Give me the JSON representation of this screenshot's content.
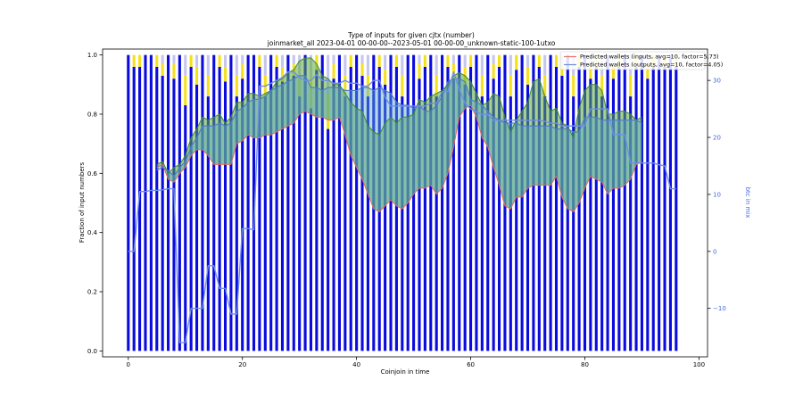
{
  "chart_data": {
    "type": "bar",
    "title_line1": "Type of inputs for given cjtx (number)",
    "title_line2": "joinmarket_all 2023-04-01 00-00-00--2023-05-01 00-00-00_unknown-static-100-1utxo",
    "xlabel": "Coinjoin in time",
    "ylabel": "Fraction of input numbers",
    "ylabel_right": "btc in mix",
    "xlim": [
      -4.5,
      101.5
    ],
    "ylim": [
      -0.02,
      1.02
    ],
    "ylim_right": [
      -18.5,
      35.5
    ],
    "x_ticks": [
      0,
      20,
      40,
      60,
      80,
      100
    ],
    "x_tick_labels": [
      "0",
      "20",
      "40",
      "60",
      "80",
      "100"
    ],
    "y_ticks": [
      0.0,
      0.2,
      0.4,
      0.6,
      0.8,
      1.0
    ],
    "y_tick_labels": [
      "0.0",
      "0.2",
      "0.4",
      "0.6",
      "0.8",
      "1.0"
    ],
    "y_right_ticks": [
      -10,
      0,
      10,
      20,
      30
    ],
    "y_right_tick_labels": [
      "−10",
      "0",
      "10",
      "20",
      "30"
    ],
    "legend": [
      {
        "label": "Predicted wallets (inputs, avg=10, factor=5.73)",
        "color": "#e8756a"
      },
      {
        "label": "Predicted wallets (outputs, avg=10, factor=4.05)",
        "color": "#6a8fd6"
      }
    ],
    "colors": {
      "fresh": "#0b0be0",
      "remix_yellow": "#f5e020",
      "remix_lavender": "#c6c6ee",
      "remix_brown": "#9a4d12",
      "fill_green": "#5caa3c",
      "fill_teal": "#5aa9c8",
      "input_line": "#e86a5a",
      "output_line": "#4e7ec8",
      "green_line": "#3a8a2a",
      "btc_line": "#6f8fe8"
    },
    "bars": {
      "x": [
        0,
        1,
        2,
        3,
        4,
        5,
        6,
        7,
        8,
        9,
        10,
        11,
        12,
        13,
        14,
        15,
        16,
        17,
        18,
        19,
        20,
        21,
        22,
        23,
        24,
        25,
        26,
        27,
        28,
        29,
        30,
        31,
        32,
        33,
        34,
        35,
        36,
        37,
        38,
        39,
        40,
        41,
        42,
        43,
        44,
        45,
        46,
        47,
        48,
        49,
        50,
        51,
        52,
        53,
        54,
        55,
        56,
        57,
        58,
        59,
        60,
        61,
        62,
        63,
        64,
        65,
        66,
        67,
        68,
        69,
        70,
        71,
        72,
        73,
        74,
        75,
        76,
        77,
        78,
        79,
        80,
        81,
        82,
        83,
        84,
        85,
        86,
        87,
        88,
        89,
        90,
        91,
        92,
        93,
        94,
        95,
        96
      ],
      "fresh": [
        1.0,
        0.96,
        0.96,
        1.0,
        1.0,
        0.96,
        0.93,
        1.0,
        0.92,
        1.0,
        0.83,
        0.96,
        0.9,
        1.0,
        0.86,
        1.0,
        0.96,
        0.91,
        1.0,
        0.86,
        0.92,
        1.0,
        1.0,
        0.96,
        0.86,
        1.0,
        0.96,
        0.91,
        1.0,
        0.93,
        0.86,
        1.0,
        0.82,
        0.95,
        1.0,
        0.75,
        0.92,
        1.0,
        0.86,
        0.96,
        1.0,
        0.93,
        0.86,
        1.0,
        0.96,
        0.9,
        1.0,
        0.96,
        0.86,
        1.0,
        1.0,
        0.92,
        0.96,
        1.0,
        0.86,
        1.0,
        0.96,
        0.92,
        1.0,
        0.9,
        0.96,
        1.0,
        0.86,
        1.0,
        0.92,
        0.96,
        1.0,
        0.86,
        0.95,
        1.0,
        0.9,
        1.0,
        0.96,
        0.86,
        1.0,
        0.96,
        0.93,
        1.0,
        0.86,
        0.96,
        1.0,
        0.92,
        0.96,
        0.86,
        1.0,
        0.92,
        0.96,
        1.0,
        0.86,
        0.96,
        1.0,
        0.92,
        0.96,
        1.0,
        0.96,
        1.0,
        0.96
      ],
      "remix_yellow": [
        0,
        0.04,
        0.04,
        0,
        0,
        0.04,
        0.04,
        0,
        0.05,
        0,
        0.1,
        0.04,
        0.06,
        0,
        0.07,
        0,
        0.04,
        0.05,
        0,
        0.07,
        0.05,
        0,
        0,
        0.04,
        0.07,
        0,
        0.04,
        0.05,
        0,
        0.04,
        0.07,
        0,
        0.1,
        0.05,
        0,
        0.12,
        0.05,
        0,
        0.07,
        0.04,
        0,
        0.04,
        0.07,
        0,
        0.04,
        0.05,
        0,
        0.04,
        0.07,
        0,
        0,
        0.05,
        0.04,
        0,
        0.07,
        0,
        0.04,
        0.05,
        0,
        0.06,
        0.04,
        0,
        0.07,
        0,
        0.05,
        0.04,
        0,
        0.07,
        0.05,
        0,
        0.06,
        0,
        0.04,
        0.07,
        0,
        0.04,
        0.04,
        0,
        0.07,
        0.04,
        0,
        0.05,
        0.04,
        0.07,
        0,
        0.05,
        0.04,
        0,
        0.07,
        0.04,
        0,
        0.05,
        0.04,
        0,
        0.04,
        0,
        0.04
      ],
      "remix_lavender": [
        0,
        0,
        0,
        0,
        0,
        0,
        0.03,
        0,
        0.03,
        0,
        0.07,
        0,
        0.04,
        0,
        0.07,
        0,
        0,
        0.04,
        0,
        0.07,
        0.03,
        0,
        0,
        0,
        0.07,
        0,
        0,
        0.04,
        0,
        0.03,
        0.07,
        0,
        0.08,
        0,
        0,
        0.13,
        0.03,
        0,
        0.07,
        0,
        0,
        0.03,
        0.07,
        0,
        0,
        0.05,
        0,
        0,
        0.07,
        0,
        0,
        0.03,
        0,
        0,
        0.07,
        0,
        0,
        0.03,
        0,
        0.04,
        0,
        0,
        0.07,
        0,
        0.03,
        0,
        0,
        0.07,
        0,
        0,
        0.04,
        0,
        0,
        0.07,
        0,
        0,
        0.03,
        0,
        0.07,
        0,
        0,
        0.03,
        0,
        0.07,
        0,
        0.03,
        0,
        0,
        0.07,
        0,
        0,
        0.03,
        0,
        0,
        0,
        0,
        0
      ],
      "remix_brown": [
        0,
        0,
        0,
        0,
        0,
        0,
        0,
        0,
        0,
        0,
        0,
        0,
        0,
        0,
        0,
        0,
        0,
        0,
        0,
        0,
        0,
        0,
        0,
        0,
        0,
        0,
        0,
        0,
        0,
        0,
        0,
        0,
        0,
        0,
        0,
        0,
        0,
        0,
        0,
        0,
        0,
        0,
        0,
        0,
        0,
        0,
        0,
        0,
        0,
        0,
        0,
        0,
        0,
        0,
        0,
        0,
        0,
        0,
        0,
        0,
        0,
        0,
        0,
        0,
        0,
        0,
        0,
        0,
        0,
        0,
        0,
        0,
        0,
        0,
        0,
        0,
        0,
        0,
        0,
        0,
        0,
        0,
        0,
        0,
        0,
        0,
        0,
        0,
        0,
        0,
        0,
        0,
        0,
        0,
        0,
        0,
        0
      ]
    },
    "series": [
      {
        "name": "inputs_predicted",
        "x": [
          5,
          6,
          7,
          8,
          9,
          10,
          11,
          12,
          13,
          14,
          15,
          16,
          17,
          18,
          19,
          20,
          21,
          22,
          23,
          24,
          25,
          26,
          27,
          28,
          29,
          30,
          31,
          32,
          33,
          34,
          35,
          36,
          37,
          38,
          39,
          40,
          41,
          42,
          43,
          44,
          45,
          46,
          47,
          48,
          49,
          50,
          51,
          52,
          53,
          54,
          55,
          56,
          57,
          58,
          59,
          60,
          61,
          62,
          63,
          64,
          65,
          66,
          67,
          68,
          69,
          70,
          71,
          72,
          73,
          74,
          75,
          76,
          77,
          78,
          79,
          80,
          81,
          82,
          83,
          84,
          85,
          86,
          87,
          88,
          89,
          90
        ],
        "values": [
          0.62,
          0.63,
          0.58,
          0.57,
          0.6,
          0.62,
          0.66,
          0.68,
          0.68,
          0.66,
          0.63,
          0.63,
          0.63,
          0.63,
          0.7,
          0.71,
          0.73,
          0.72,
          0.72,
          0.73,
          0.73,
          0.74,
          0.75,
          0.76,
          0.77,
          0.8,
          0.81,
          0.8,
          0.79,
          0.79,
          0.78,
          0.78,
          0.79,
          0.73,
          0.66,
          0.62,
          0.58,
          0.53,
          0.48,
          0.47,
          0.49,
          0.51,
          0.49,
          0.48,
          0.5,
          0.53,
          0.55,
          0.55,
          0.56,
          0.53,
          0.55,
          0.6,
          0.69,
          0.79,
          0.82,
          0.83,
          0.79,
          0.72,
          0.69,
          0.62,
          0.56,
          0.49,
          0.48,
          0.52,
          0.52,
          0.55,
          0.56,
          0.56,
          0.56,
          0.56,
          0.59,
          0.52,
          0.48,
          0.47,
          0.5,
          0.55,
          0.59,
          0.58,
          0.57,
          0.53,
          0.55,
          0.55,
          0.56,
          0.58,
          0.63,
          0.64
        ]
      },
      {
        "name": "inputs_upper",
        "x": [
          5,
          6,
          7,
          8,
          9,
          10,
          11,
          12,
          13,
          14,
          15,
          16,
          17,
          18,
          19,
          20,
          21,
          22,
          23,
          24,
          25,
          26,
          27,
          28,
          29,
          30,
          31,
          32,
          33,
          34,
          35,
          36,
          37,
          38,
          39,
          40,
          41,
          42,
          43,
          44,
          45,
          46,
          47,
          48,
          49,
          50,
          51,
          52,
          53,
          54,
          55,
          56,
          57,
          58,
          59,
          60,
          61,
          62,
          63,
          64,
          65,
          66,
          67,
          68,
          69,
          70,
          71,
          72,
          73,
          74,
          75,
          76,
          77,
          78,
          79,
          80,
          81,
          82,
          83,
          84,
          85,
          86,
          87,
          88,
          89,
          90
        ],
        "values": [
          0.63,
          0.64,
          0.6,
          0.62,
          0.63,
          0.66,
          0.72,
          0.75,
          0.79,
          0.78,
          0.79,
          0.8,
          0.77,
          0.79,
          0.84,
          0.84,
          0.87,
          0.87,
          0.86,
          0.87,
          0.88,
          0.91,
          0.92,
          0.94,
          0.95,
          0.98,
          0.99,
          0.99,
          0.97,
          0.93,
          0.92,
          0.9,
          0.9,
          0.87,
          0.84,
          0.82,
          0.81,
          0.76,
          0.74,
          0.73,
          0.77,
          0.79,
          0.77,
          0.79,
          0.79,
          0.8,
          0.85,
          0.84,
          0.86,
          0.87,
          0.88,
          0.9,
          0.93,
          0.94,
          0.93,
          0.91,
          0.87,
          0.83,
          0.84,
          0.87,
          0.86,
          0.79,
          0.74,
          0.78,
          0.81,
          0.84,
          0.91,
          0.92,
          0.86,
          0.81,
          0.82,
          0.77,
          0.76,
          0.72,
          0.82,
          0.88,
          0.9,
          0.9,
          0.88,
          0.8,
          0.8,
          0.81,
          0.81,
          0.8,
          0.78,
          0.79
        ]
      },
      {
        "name": "outputs_predicted",
        "x": [
          5,
          6,
          7,
          8,
          9,
          10,
          11,
          12,
          13,
          14,
          15,
          16,
          17,
          18,
          19,
          20,
          21,
          22,
          23,
          24,
          25,
          26,
          27,
          28,
          29,
          30,
          31,
          32,
          33,
          34,
          35,
          36,
          37,
          38,
          39,
          40,
          41,
          42,
          43,
          44,
          45,
          46,
          47,
          48,
          49,
          50,
          51,
          52,
          53,
          54,
          55,
          56,
          57,
          58,
          59,
          60,
          61,
          62,
          63,
          64,
          65,
          66,
          67,
          68,
          69,
          70,
          71,
          72,
          73,
          74,
          75,
          76,
          77,
          78,
          79,
          80,
          81,
          82,
          83,
          84,
          85,
          86,
          87,
          88,
          89,
          90
        ],
        "values": [
          0.61,
          0.62,
          0.61,
          0.59,
          0.62,
          0.64,
          0.69,
          0.72,
          0.76,
          0.76,
          0.76,
          0.77,
          0.76,
          0.77,
          0.81,
          0.82,
          0.84,
          0.85,
          0.85,
          0.86,
          0.88,
          0.89,
          0.9,
          0.91,
          0.92,
          0.93,
          0.93,
          0.89,
          0.89,
          0.88,
          0.89,
          0.89,
          0.89,
          0.88,
          0.88,
          0.88,
          0.89,
          0.89,
          0.88,
          0.89,
          0.88,
          0.87,
          0.84,
          0.83,
          0.83,
          0.82,
          0.83,
          0.81,
          0.81,
          0.83,
          0.86,
          0.91,
          0.92,
          0.92,
          0.91,
          0.85,
          0.84,
          0.83,
          0.81,
          0.79,
          0.78,
          0.77,
          0.77,
          0.77,
          0.76,
          0.76,
          0.76,
          0.76,
          0.76,
          0.76,
          0.75,
          0.75,
          0.75,
          0.74,
          0.74,
          0.79,
          0.79,
          0.79,
          0.78,
          0.78,
          0.78,
          0.78,
          0.78,
          0.78,
          0.78,
          0.77
        ]
      },
      {
        "name": "btc_in_mix",
        "x": [
          0,
          1,
          2,
          3,
          4,
          5,
          6,
          7,
          8,
          9,
          10,
          11,
          12,
          13,
          14,
          15,
          16,
          17,
          18,
          19,
          20,
          21,
          22,
          23,
          24,
          25,
          26,
          27,
          28,
          29,
          30,
          31,
          32,
          33,
          34,
          35,
          36,
          37,
          38,
          39,
          40,
          41,
          42,
          43,
          44,
          45,
          46,
          47,
          48,
          49,
          50,
          51,
          52,
          53,
          54,
          55,
          56,
          57,
          58,
          59,
          60,
          61,
          62,
          63,
          64,
          65,
          66,
          67,
          68,
          69,
          70,
          71,
          72,
          73,
          74,
          75,
          76,
          77,
          78,
          79,
          80,
          81,
          82,
          83,
          84,
          85,
          86,
          87,
          88,
          89,
          90,
          91,
          92,
          93,
          94,
          95,
          96
        ],
        "values": [
          0,
          0,
          10.5,
          10.5,
          10.7,
          10.7,
          10.8,
          11,
          11,
          -16,
          -16,
          -10,
          -10,
          -10,
          -2.5,
          -2.5,
          -6.5,
          -6.5,
          -11,
          -11,
          4,
          4,
          3.8,
          29,
          29,
          29.5,
          30,
          30.5,
          31.5,
          31.5,
          30.5,
          30,
          30,
          31,
          30,
          30,
          29.5,
          29.5,
          30,
          29.5,
          29.5,
          29,
          29,
          30,
          30,
          27,
          25.5,
          25.5,
          25.5,
          25.5,
          25.5,
          25.5,
          25.5,
          26,
          26,
          28,
          28,
          31.5,
          28.5,
          26,
          25,
          24.5,
          24,
          24,
          23,
          23,
          23,
          23,
          23,
          23,
          23,
          23,
          23,
          22.8,
          22.5,
          22.5,
          22,
          22,
          22,
          22,
          22,
          25,
          25,
          25,
          25,
          20.5,
          20.5,
          20.5,
          15.5,
          15.5,
          15.5,
          15.5,
          15.5,
          15.2,
          15,
          11,
          11
        ]
      }
    ]
  }
}
